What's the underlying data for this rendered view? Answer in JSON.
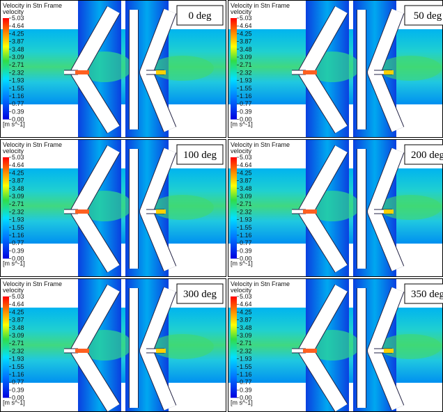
{
  "legend": {
    "title": "Velocity in Stn Frame",
    "variable": "velocity",
    "ticks": [
      "5.03",
      "4.64",
      "4.25",
      "3.87",
      "3.48",
      "3.09",
      "2.71",
      "2.32",
      "1.93",
      "1.55",
      "1.16",
      "0.77",
      "0.39",
      "0.00"
    ],
    "unit": "[m s^-1]"
  },
  "panels": [
    {
      "angle": "0 deg"
    },
    {
      "angle": "50 deg"
    },
    {
      "angle": "100 deg"
    },
    {
      "angle": "200 deg"
    },
    {
      "angle": "300 deg"
    },
    {
      "angle": "350 deg"
    }
  ]
}
